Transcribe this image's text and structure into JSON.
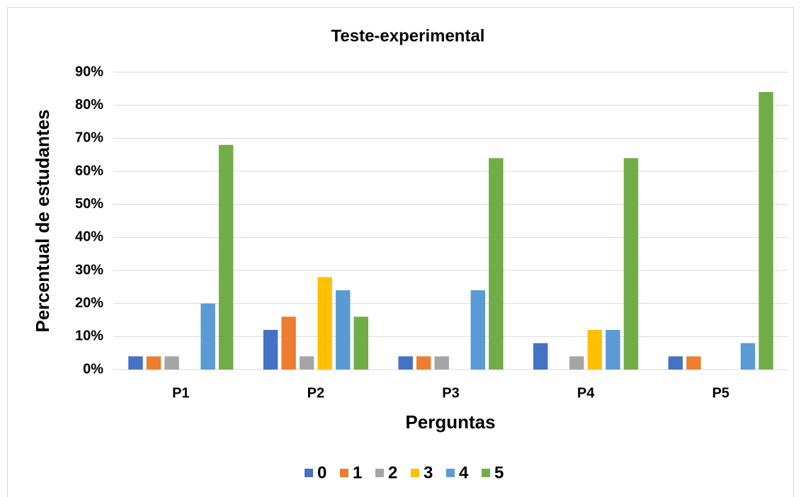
{
  "chart_data": {
    "type": "bar",
    "title": "Teste-experimental",
    "x_label": "Perguntas",
    "y_label": "Percentual de estudantes",
    "categories": [
      "P1",
      "P2",
      "P3",
      "P4",
      "P5"
    ],
    "series": [
      {
        "name": "0",
        "color": "#4472c4",
        "values": [
          4,
          12,
          4,
          8,
          4
        ]
      },
      {
        "name": "1",
        "color": "#ed7d31",
        "values": [
          4,
          16,
          4,
          0,
          4
        ]
      },
      {
        "name": "2",
        "color": "#a5a5a5",
        "values": [
          4,
          4,
          4,
          4,
          0
        ]
      },
      {
        "name": "3",
        "color": "#ffc000",
        "values": [
          0,
          28,
          0,
          12,
          0
        ]
      },
      {
        "name": "4",
        "color": "#5b9bd5",
        "values": [
          20,
          24,
          24,
          12,
          8
        ]
      },
      {
        "name": "5",
        "color": "#70ad47",
        "values": [
          68,
          16,
          64,
          64,
          84
        ]
      }
    ],
    "ylim": [
      0,
      90
    ],
    "yticks": [
      {
        "value": 0,
        "label": "0%"
      },
      {
        "value": 10,
        "label": "10%"
      },
      {
        "value": 20,
        "label": "20%"
      },
      {
        "value": 30,
        "label": "30%"
      },
      {
        "value": 40,
        "label": "40%"
      },
      {
        "value": 50,
        "label": "50%"
      },
      {
        "value": 60,
        "label": "60%"
      },
      {
        "value": 70,
        "label": "70%"
      },
      {
        "value": 80,
        "label": "80%"
      },
      {
        "value": 90,
        "label": "90%"
      }
    ],
    "grid": true,
    "legend": "bottom"
  }
}
